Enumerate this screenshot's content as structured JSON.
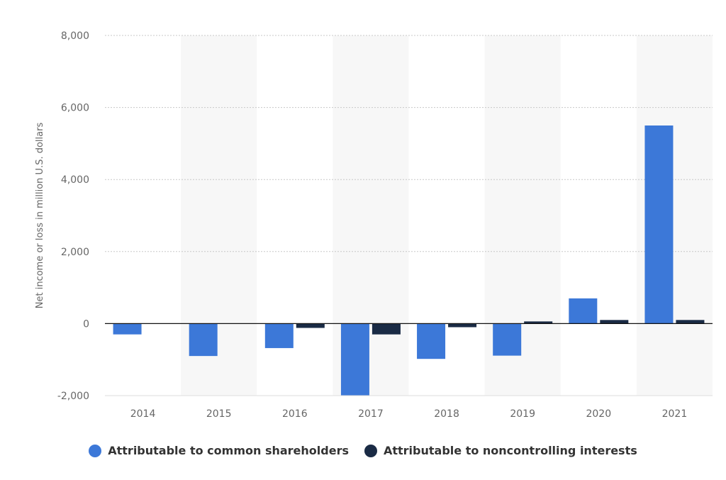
{
  "chart_data": {
    "type": "bar",
    "title": "",
    "xlabel": "",
    "ylabel": "Net income or loss in million U.S. dollars",
    "categories": [
      "2014",
      "2015",
      "2016",
      "2017",
      "2018",
      "2019",
      "2020",
      "2021"
    ],
    "series": [
      {
        "name": "Attributable to common shareholders",
        "color": "#3c78d8",
        "values": [
          -300,
          -900,
          -680,
          -2000,
          -980,
          -890,
          700,
          5500
        ]
      },
      {
        "name": "Attributable to noncontrolling interests",
        "color": "#1a2b45",
        "values": [
          0,
          0,
          -120,
          -300,
          -100,
          60,
          100,
          100
        ]
      }
    ],
    "ylim": [
      -2000,
      8000
    ],
    "yticks": [
      -2000,
      0,
      2000,
      4000,
      6000,
      8000
    ],
    "ytick_labels": [
      "-2,000",
      "0",
      "2,000",
      "4,000",
      "6,000",
      "8,000"
    ],
    "grid": true,
    "legend_position": "bottom",
    "alternating_column_shading": true
  }
}
